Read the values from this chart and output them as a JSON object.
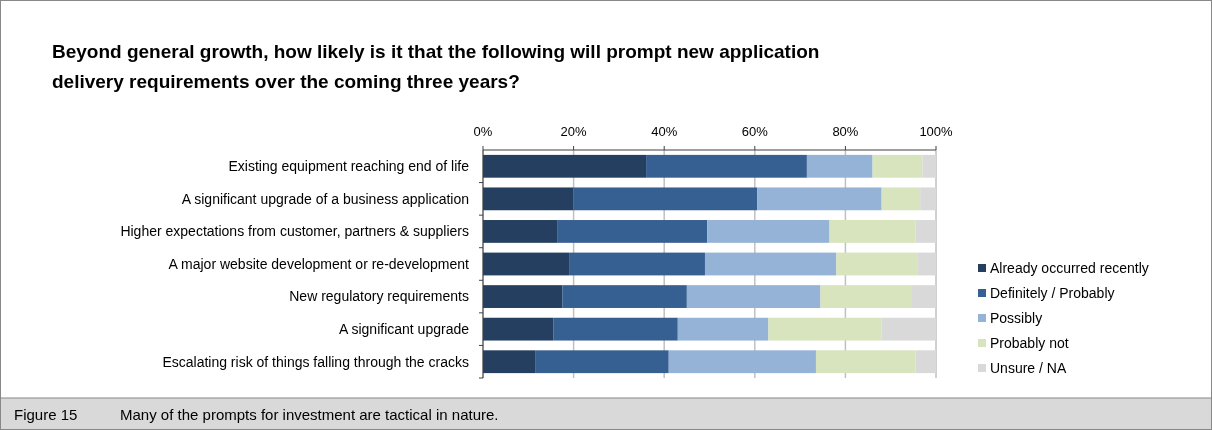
{
  "chart_data": {
    "type": "bar",
    "orientation": "horizontal",
    "stacked": true,
    "title": "Beyond general growth, how likely is it that the following will prompt new application delivery requirements over the coming three years?",
    "categories": [
      "Existing equipment reaching end of life",
      "A significant upgrade of a business application",
      "Higher expectations from customer, partners & suppliers",
      "A major website development or re-development",
      "New regulatory requirements",
      "A significant upgrade",
      "Escalating risk of things falling through the cracks"
    ],
    "series": [
      {
        "name": "Already occurred recently",
        "color": "#243f60",
        "values": [
          36,
          20,
          16.5,
          19,
          17.5,
          15.5,
          11.5
        ]
      },
      {
        "name": "Definitely / Probably",
        "color": "#376092",
        "values": [
          35.5,
          40.5,
          33,
          30,
          27.5,
          27.5,
          29.5
        ]
      },
      {
        "name": "Possibly",
        "color": "#95b3d7",
        "values": [
          14.5,
          27.5,
          27,
          29,
          29.5,
          20,
          32.5
        ]
      },
      {
        "name": "Probably not",
        "color": "#d7e4bd",
        "values": [
          11,
          8.5,
          19,
          18,
          20,
          25,
          22
        ]
      },
      {
        "name": "Unsure / NA",
        "color": "#d9d9d9",
        "values": [
          3,
          3.5,
          4.5,
          4,
          5.5,
          12,
          4.5
        ]
      }
    ],
    "xlim": [
      0,
      100
    ],
    "xticks": [
      {
        "value": 0,
        "label": "0%"
      },
      {
        "value": 20,
        "label": "20%"
      },
      {
        "value": 40,
        "label": "40%"
      },
      {
        "value": 60,
        "label": "60%"
      },
      {
        "value": 80,
        "label": "80%"
      },
      {
        "value": 100,
        "label": "100%"
      }
    ],
    "grid": "x",
    "legend": "right",
    "annotations": [
      "Figure 15",
      "Many of the prompts for investment are tactical in nature."
    ]
  }
}
